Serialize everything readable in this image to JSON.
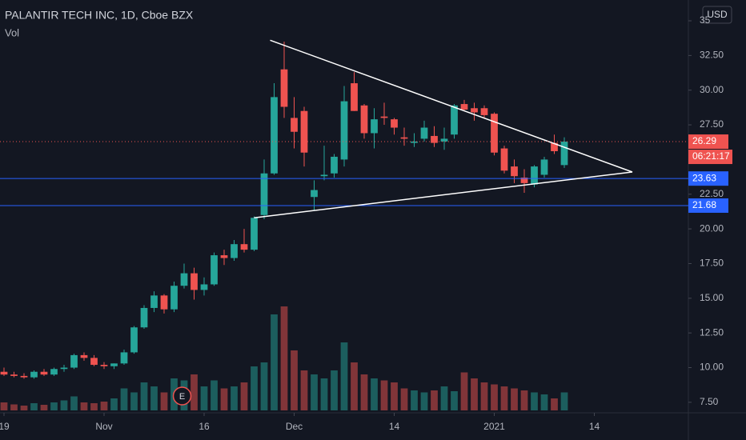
{
  "chart_data": {
    "type": "candlestick",
    "title": "PALANTIR TECH INC, 1D, Cboe BZX",
    "volume_label": "Vol",
    "currency": "USD",
    "up_color": "#26a69a",
    "down_color": "#ef5350",
    "open": [
      9.7,
      9.5,
      9.4,
      9.3,
      9.7,
      9.5,
      9.9,
      10.0,
      10.9,
      10.7,
      10.2,
      10.1,
      10.3,
      11.1,
      12.9,
      14.3,
      15.2,
      14.2,
      15.9,
      16.8,
      15.6,
      16.0,
      18.1,
      17.9,
      18.9,
      18.5,
      21.0,
      24.0,
      31.5,
      28.0,
      28.5,
      22.3,
      23.8,
      24.0,
      25.0,
      30.5,
      28.9,
      26.9,
      28.1,
      27.9,
      26.6,
      26.2,
      26.5,
      26.7,
      26.3,
      26.8,
      29.0,
      28.7,
      28.7,
      28.3,
      25.8,
      24.5,
      23.7,
      23.2,
      23.9,
      26.2,
      24.6
    ],
    "high": [
      10.0,
      9.7,
      9.6,
      9.8,
      9.9,
      10.0,
      10.2,
      11.0,
      11.1,
      10.9,
      10.4,
      10.3,
      11.3,
      13.0,
      14.5,
      15.5,
      15.3,
      16.2,
      17.5,
      17.2,
      16.5,
      18.3,
      18.5,
      19.2,
      20.0,
      20.9,
      25.0,
      30.5,
      33.5,
      29.5,
      28.8,
      23.5,
      26.0,
      25.4,
      30.3,
      31.3,
      29.0,
      28.7,
      29.1,
      28.0,
      27.3,
      26.9,
      27.8,
      27.4,
      27.3,
      29.0,
      29.3,
      29.1,
      28.9,
      28.4,
      26.0,
      25.0,
      24.3,
      24.6,
      25.2,
      26.8,
      26.6
    ],
    "low": [
      9.4,
      9.3,
      9.2,
      9.2,
      9.4,
      9.4,
      9.7,
      9.9,
      10.5,
      10.1,
      9.9,
      9.9,
      10.2,
      11.0,
      12.8,
      14.0,
      13.9,
      14.0,
      15.7,
      14.9,
      15.2,
      15.9,
      17.4,
      17.7,
      18.3,
      18.4,
      20.7,
      23.9,
      28.0,
      25.8,
      24.5,
      21.3,
      23.5,
      23.7,
      24.5,
      28.5,
      26.5,
      25.8,
      27.5,
      26.8,
      26.0,
      25.9,
      26.3,
      25.9,
      25.7,
      26.5,
      28.5,
      27.8,
      28.0,
      25.3,
      24.0,
      23.3,
      22.6,
      23.0,
      23.7,
      25.4,
      24.4
    ],
    "close": [
      9.5,
      9.4,
      9.3,
      9.7,
      9.5,
      9.9,
      10.0,
      10.9,
      10.7,
      10.2,
      10.1,
      10.3,
      11.1,
      12.9,
      14.3,
      15.2,
      14.2,
      15.9,
      16.8,
      15.6,
      16.0,
      18.1,
      17.9,
      18.9,
      18.5,
      20.8,
      24.0,
      29.5,
      28.8,
      27.0,
      25.5,
      22.8,
      23.9,
      25.2,
      29.2,
      28.5,
      26.9,
      27.9,
      28.0,
      27.3,
      26.5,
      26.3,
      27.3,
      26.2,
      26.5,
      28.9,
      28.6,
      28.4,
      28.2,
      25.5,
      24.2,
      23.8,
      23.3,
      24.5,
      25.0,
      25.6,
      26.29
    ],
    "volume": [
      20,
      15,
      12,
      18,
      14,
      20,
      25,
      35,
      20,
      18,
      22,
      30,
      55,
      45,
      70,
      60,
      45,
      80,
      75,
      90,
      60,
      75,
      55,
      60,
      70,
      110,
      120,
      240,
      260,
      150,
      100,
      90,
      80,
      100,
      170,
      120,
      90,
      80,
      75,
      70,
      55,
      50,
      45,
      50,
      60,
      48,
      95,
      80,
      70,
      65,
      60,
      55,
      50,
      45,
      40,
      30,
      45
    ],
    "ylim": [
      6.8,
      36.5
    ],
    "yticks": [
      {
        "value": 7.5,
        "label": "7.50"
      },
      {
        "value": 10,
        "label": "10.00"
      },
      {
        "value": 12.5,
        "label": "12.50"
      },
      {
        "value": 15,
        "label": "15.00"
      },
      {
        "value": 17.5,
        "label": "17.50"
      },
      {
        "value": 20,
        "label": "20.00"
      },
      {
        "value": 22.5,
        "label": "22.50"
      },
      {
        "value": 27.5,
        "label": "27.50"
      },
      {
        "value": 30,
        "label": "30.00"
      },
      {
        "value": 32.5,
        "label": "32.50"
      },
      35
    ],
    "xlim": [
      -0.4,
      68.4
    ],
    "xticks": [
      {
        "value": 0,
        "label": "19"
      },
      {
        "value": 10,
        "label": "Nov"
      },
      {
        "value": 20,
        "label": "16"
      },
      {
        "value": 29,
        "label": "Dec"
      },
      {
        "value": 39,
        "label": "14"
      },
      {
        "value": 49,
        "label": "2021"
      },
      {
        "value": 59,
        "label": "14"
      }
    ],
    "last_price": 26.29,
    "countdown": "06:21:17",
    "levels": [
      {
        "value": 23.63,
        "color": "#2962ff"
      },
      {
        "value": 21.68,
        "color": "#2962ff"
      }
    ],
    "trendlines": [
      {
        "x": [
          26.6,
          62.8
        ],
        "y": [
          33.6,
          24.1
        ]
      },
      {
        "x": [
          25,
          62.8
        ],
        "y": [
          20.8,
          24.1
        ]
      }
    ],
    "earnings": {
      "label": "E",
      "x": 17.8
    }
  }
}
